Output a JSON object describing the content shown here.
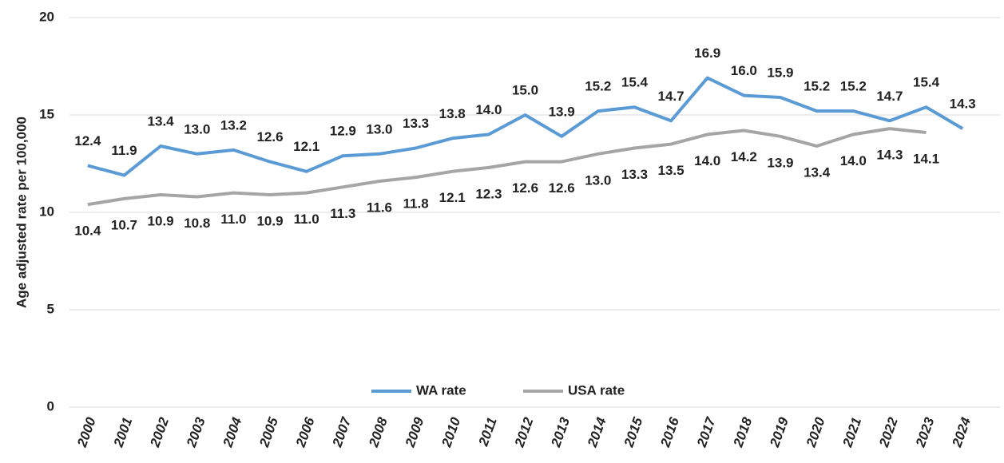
{
  "chart_data": {
    "type": "line",
    "ylabel": "Age adjusted rate per 100,000",
    "categories": [
      "2000",
      "2001",
      "2002",
      "2003",
      "2004",
      "2005",
      "2006",
      "2007",
      "2008",
      "2009",
      "2010",
      "2011",
      "2012",
      "2013",
      "2014",
      "2015",
      "2016",
      "2017",
      "2018",
      "2019",
      "2020",
      "2021",
      "2022",
      "2023",
      "2024"
    ],
    "series": [
      {
        "name": "WA rate",
        "color": "#5b9bd5",
        "values": [
          12.4,
          11.9,
          13.4,
          13.0,
          13.2,
          12.6,
          12.1,
          12.9,
          13.0,
          13.3,
          13.8,
          14.0,
          15.0,
          13.9,
          15.2,
          15.4,
          14.7,
          16.9,
          16.0,
          15.9,
          15.2,
          15.2,
          14.7,
          15.4,
          14.3
        ],
        "value_labels": [
          "12.4",
          "11.9",
          "13.4",
          "13.0",
          "13.2",
          "12.6",
          "12.1",
          "12.9",
          "13.0",
          "13.3",
          "13.8",
          "14.0",
          "15.0",
          "13.9",
          "15.2",
          "15.4",
          "14.7",
          "16.9",
          "16.0",
          "15.9",
          "15.2",
          "15.2",
          "14.7",
          "15.4",
          "14.3"
        ]
      },
      {
        "name": "USA rate",
        "color": "#a5a5a5",
        "values": [
          10.4,
          10.7,
          10.9,
          10.8,
          11.0,
          10.9,
          11.0,
          11.3,
          11.6,
          11.8,
          12.1,
          12.3,
          12.6,
          12.6,
          13.0,
          13.3,
          13.5,
          14.0,
          14.2,
          13.9,
          13.4,
          14.0,
          14.3,
          14.1,
          null
        ],
        "value_labels": [
          "10.4",
          "10.7",
          "10.9",
          "10.8",
          "11.0",
          "10.9",
          "11.0",
          "11.3",
          "11.6",
          "11.8",
          "12.1",
          "12.3",
          "12.6",
          "12.6",
          "13.0",
          "13.3",
          "13.5",
          "14.0",
          "14.2",
          "13.9",
          "13.4",
          "14.0",
          "14.3",
          "14.1",
          null
        ]
      }
    ],
    "ylim": [
      0,
      20
    ],
    "yticks": [
      0,
      5,
      10,
      15,
      20
    ],
    "grid": true,
    "legend": "bottom"
  }
}
